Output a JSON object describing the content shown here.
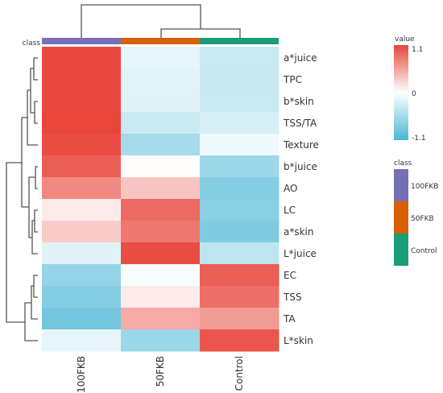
{
  "chart_data": {
    "type": "heatmap",
    "columns": [
      "100FKB",
      "50FKB",
      "Control"
    ],
    "rows": [
      "a*juice",
      "TPC",
      "b*skin",
      "TSS/TA",
      "Texture",
      "b*juice",
      "AO",
      "LC",
      "a*skin",
      "L*juice",
      "EC",
      "TSS",
      "TA",
      "L*skin"
    ],
    "values": [
      [
        1.08,
        -0.15,
        -0.32
      ],
      [
        1.08,
        -0.18,
        -0.33
      ],
      [
        1.08,
        -0.2,
        -0.32
      ],
      [
        1.1,
        -0.32,
        -0.25
      ],
      [
        1.05,
        -0.55,
        -0.1
      ],
      [
        0.95,
        0.02,
        -0.6
      ],
      [
        0.7,
        0.35,
        -0.75
      ],
      [
        0.12,
        0.88,
        -0.72
      ],
      [
        0.3,
        0.8,
        -0.78
      ],
      [
        -0.2,
        1.05,
        -0.4
      ],
      [
        -0.65,
        -0.05,
        0.95
      ],
      [
        -0.75,
        0.12,
        0.85
      ],
      [
        -0.85,
        0.5,
        0.6
      ],
      [
        -0.15,
        -0.6,
        1.0
      ]
    ],
    "value_range": [
      -1.1,
      1.1
    ],
    "row_annotation_title": "class",
    "legend_value_title": "value",
    "legend_value_ticks": [
      "1.1",
      "0",
      "-1.1"
    ],
    "legend_class_title": "class",
    "classes": [
      {
        "name": "100FKB",
        "color": "#7570b3"
      },
      {
        "name": "50FKB",
        "color": "#d95f02"
      },
      {
        "name": "Control",
        "color": "#1b9e77"
      }
    ],
    "color_scale": {
      "high": "#e8453b",
      "mid": "#ffffff",
      "low": "#4ab7d4"
    }
  }
}
